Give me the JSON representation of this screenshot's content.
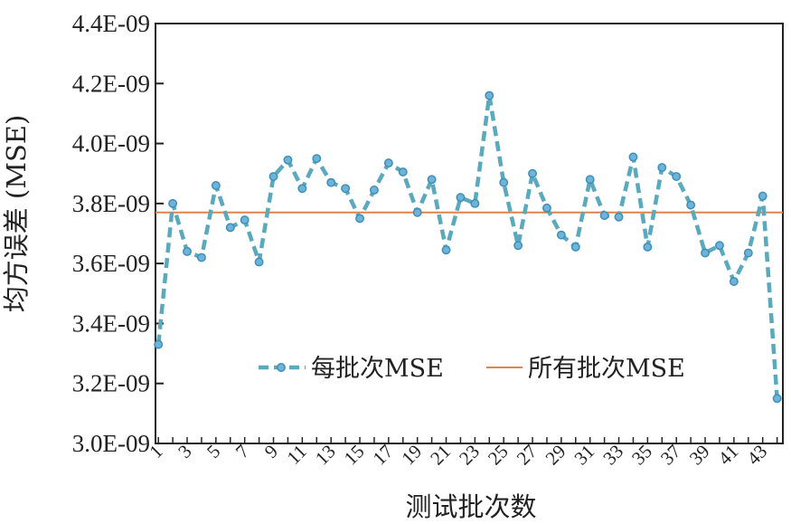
{
  "chart_data": {
    "type": "line",
    "title": "",
    "xlabel": "测试批次数",
    "ylabel": "均方误差 (MSE)",
    "x": [
      1,
      2,
      3,
      4,
      5,
      6,
      7,
      8,
      9,
      10,
      11,
      12,
      13,
      14,
      15,
      16,
      17,
      18,
      19,
      20,
      21,
      22,
      23,
      24,
      25,
      26,
      27,
      28,
      29,
      30,
      31,
      32,
      33,
      34,
      35,
      36,
      37,
      38,
      39,
      40,
      41,
      42,
      43,
      44
    ],
    "x_tick_labels": [
      "1",
      "3",
      "5",
      "7",
      "9",
      "11",
      "13",
      "15",
      "17",
      "19",
      "21",
      "23",
      "25",
      "27",
      "29",
      "31",
      "33",
      "35",
      "37",
      "39",
      "41",
      "43"
    ],
    "y_tick_labels": [
      "3.0E-09",
      "3.2E-09",
      "3.4E-09",
      "3.6E-09",
      "3.8E-09",
      "4.0E-09",
      "4.2E-09",
      "4.4E-09"
    ],
    "ylim": [
      3e-09,
      4.4e-09
    ],
    "xlim": [
      0.8,
      44.4
    ],
    "grid": false,
    "legend_position": "lower-center",
    "series": [
      {
        "name": "每批次MSE",
        "color": "#5aa9bd",
        "style": "dashed-with-markers",
        "values": [
          3.33e-09,
          3.8e-09,
          3.64e-09,
          3.62e-09,
          3.86e-09,
          3.72e-09,
          3.745e-09,
          3.605e-09,
          3.89e-09,
          3.945e-09,
          3.85e-09,
          3.95e-09,
          3.87e-09,
          3.85e-09,
          3.75e-09,
          3.845e-09,
          3.935e-09,
          3.905e-09,
          3.77e-09,
          3.88e-09,
          3.645e-09,
          3.82e-09,
          3.8e-09,
          4.16e-09,
          3.87e-09,
          3.66e-09,
          3.9e-09,
          3.785e-09,
          3.695e-09,
          3.655e-09,
          3.88e-09,
          3.76e-09,
          3.755e-09,
          3.955e-09,
          3.655e-09,
          3.92e-09,
          3.89e-09,
          3.795e-09,
          3.635e-09,
          3.66e-09,
          3.54e-09,
          3.635e-09,
          3.825e-09,
          3.15e-09
        ]
      },
      {
        "name": "所有批次MSE",
        "color": "#e0834f",
        "style": "solid",
        "value": 3.77e-09
      }
    ]
  }
}
